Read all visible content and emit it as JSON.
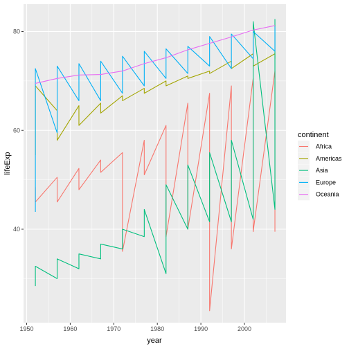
{
  "chart_data": {
    "type": "line",
    "xlabel": "year",
    "ylabel": "lifeExp",
    "xlim": [
      1950,
      2008
    ],
    "ylim": [
      21,
      84
    ],
    "x_ticks": [
      1950,
      1960,
      1970,
      1980,
      1990,
      2000
    ],
    "y_ticks": [
      40,
      60,
      80
    ],
    "grid": true,
    "legend": {
      "title": "continent",
      "placement": "right"
    },
    "series": [
      {
        "name": "Africa",
        "color": "#F8766D",
        "x": [
          1952,
          1952,
          1957,
          1957,
          1962,
          1962,
          1967,
          1967,
          1972,
          1972,
          1977,
          1977,
          1982,
          1982,
          1987,
          1987,
          1992,
          1992,
          1997,
          1997,
          2002,
          2002,
          2007,
          2007
        ],
        "y": [
          48.5,
          45.5,
          50.5,
          45.5,
          52.3,
          48.0,
          54.0,
          51.5,
          55.5,
          35.5,
          58.0,
          51.0,
          61.0,
          38.5,
          65.5,
          40.0,
          67.5,
          23.5,
          69.0,
          36.0,
          70.5,
          39.5,
          72.0,
          39.5
        ]
      },
      {
        "name": "Americas",
        "color": "#A3A500",
        "x": [
          1952,
          1952,
          1957,
          1957,
          1962,
          1962,
          1967,
          1967,
          1972,
          1972,
          1977,
          1977,
          1982,
          1982,
          1987,
          1987,
          1992,
          1992,
          1997,
          1997,
          2002,
          2002,
          2007,
          2007
        ],
        "y": [
          55.0,
          69.0,
          64.0,
          58.0,
          65.0,
          61.0,
          65.5,
          63.5,
          67.0,
          66.0,
          68.5,
          67.5,
          70.0,
          69.0,
          71.0,
          70.5,
          72.0,
          71.5,
          74.0,
          72.5,
          75.5,
          73.0,
          75.5,
          74.5
        ]
      },
      {
        "name": "Asia",
        "color": "#00BF7D",
        "x": [
          1952,
          1952,
          1957,
          1957,
          1962,
          1962,
          1967,
          1967,
          1972,
          1972,
          1977,
          1977,
          1982,
          1982,
          1987,
          1987,
          1992,
          1992,
          1997,
          1997,
          2002,
          2002,
          2007,
          2007
        ],
        "y": [
          28.5,
          32.5,
          30.0,
          34.0,
          32.0,
          35.0,
          34.0,
          37.0,
          36.0,
          40.0,
          38.5,
          44.0,
          31.0,
          49.0,
          40.0,
          53.0,
          41.5,
          55.5,
          41.5,
          58.0,
          42.0,
          82.0,
          44.0,
          82.5
        ]
      },
      {
        "name": "Europe",
        "color": "#00B0F6",
        "x": [
          1952,
          1952,
          1957,
          1957,
          1962,
          1962,
          1967,
          1967,
          1972,
          1972,
          1977,
          1977,
          1982,
          1982,
          1987,
          1987,
          1992,
          1992,
          1997,
          1997,
          2002,
          2002,
          2007,
          2007
        ],
        "y": [
          43.5,
          72.5,
          59.5,
          73.0,
          66.0,
          73.5,
          66.0,
          74.0,
          67.5,
          75.0,
          69.0,
          76.0,
          70.5,
          76.5,
          71.5,
          77.0,
          73.0,
          79.0,
          72.5,
          79.5,
          74.5,
          80.0,
          76.0,
          81.0
        ]
      },
      {
        "name": "Oceania",
        "color": "#E76BF3",
        "x": [
          1952,
          1957,
          1962,
          1967,
          1972,
          1977,
          1982,
          1987,
          1992,
          1997,
          2002,
          2007
        ],
        "y": [
          69.5,
          70.5,
          71.2,
          71.3,
          72.0,
          73.5,
          74.7,
          76.3,
          77.6,
          78.9,
          80.3,
          81.2
        ]
      }
    ]
  }
}
